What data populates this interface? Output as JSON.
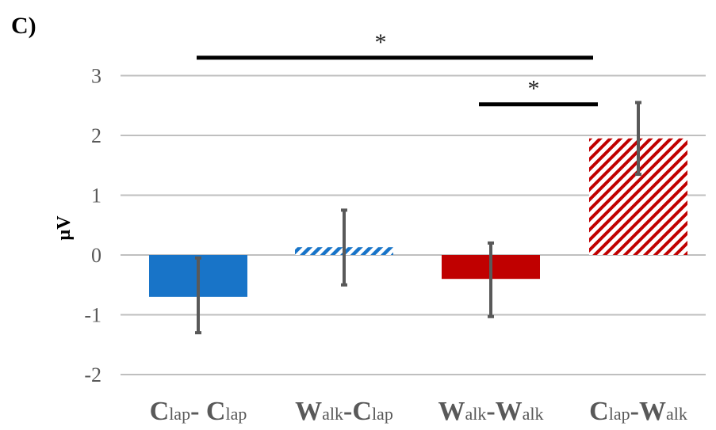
{
  "chart_data": {
    "type": "bar",
    "panel_label": "C)",
    "ylabel": "µV",
    "ylim": [
      -2,
      3
    ],
    "yticks": [
      3,
      2,
      1,
      0,
      -1,
      -2
    ],
    "grid": true,
    "categories": [
      {
        "main": "C",
        "sub": "lap",
        "sep": "- ",
        "main2": "C",
        "sub2": "lap"
      },
      {
        "main": "W",
        "sub": "alk",
        "sep": "-",
        "main2": "C",
        "sub2": "lap"
      },
      {
        "main": "W",
        "sub": "alk",
        "sep": "-",
        "main2": "W",
        "sub2": "alk"
      },
      {
        "main": "C",
        "sub": "lap",
        "sep": "-",
        "main2": "W",
        "sub2": "alk"
      }
    ],
    "values": [
      -0.7,
      0.13,
      -0.4,
      1.95
    ],
    "error_low": [
      -1.3,
      -0.5,
      -1.03,
      1.35
    ],
    "error_high": [
      -0.05,
      0.75,
      0.2,
      2.55
    ],
    "styles": [
      "solid",
      "hatched",
      "solid",
      "hatched"
    ],
    "colors": [
      "#1874c8",
      "#1874c8",
      "#c00000",
      "#c00000"
    ],
    "error_color": "#595959",
    "significance": [
      {
        "from": 0,
        "to": 3,
        "label": "*",
        "at": 3.3
      },
      {
        "from": 2,
        "to": 3,
        "label": "*",
        "at": 2.52
      }
    ]
  }
}
